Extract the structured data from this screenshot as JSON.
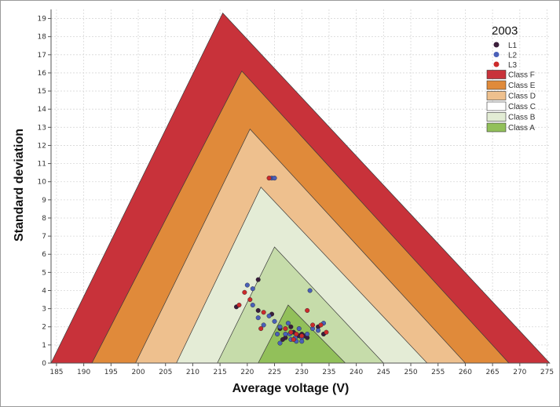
{
  "chart_data": {
    "type": "scatter",
    "title": "2003",
    "xlabel": "Average voltage (V)",
    "ylabel": "Standard deviation",
    "xlim": [
      184,
      275.5
    ],
    "ylim": [
      0,
      19.5
    ],
    "x_ticks": [
      185,
      190,
      195,
      200,
      205,
      210,
      215,
      220,
      225,
      230,
      235,
      240,
      245,
      250,
      255,
      260,
      265,
      270,
      275
    ],
    "y_ticks": [
      0,
      1,
      2,
      3,
      4,
      5,
      6,
      7,
      8,
      9,
      10,
      11,
      12,
      13,
      14,
      15,
      16,
      17,
      18,
      19
    ],
    "grid": true,
    "legend_position": "top-right",
    "colors": {
      "L1": "#3b1e3a",
      "L2": "#4a60b8",
      "L3": "#cc2a2a",
      "class_f": "#c8323a",
      "class_e": "#e08a3a",
      "class_d": "#eec08e",
      "class_c": "#ffffff",
      "class_b": "#e2ecd4",
      "class_a": "#92c05a"
    },
    "regions": [
      {
        "name": "Class F",
        "color": "#c8323a",
        "triangle": [
          [
            184,
            0
          ],
          [
            215.5,
            19.3
          ],
          [
            275.5,
            0
          ]
        ]
      },
      {
        "name": "Class E",
        "color": "#e08a3a",
        "triangle": [
          [
            191.5,
            0
          ],
          [
            219,
            16.1
          ],
          [
            268,
            0
          ]
        ]
      },
      {
        "name": "Class D",
        "color": "#eec08e",
        "triangle": [
          [
            199.5,
            0
          ],
          [
            220.5,
            12.9
          ],
          [
            260,
            0
          ]
        ]
      },
      {
        "name": "Class C",
        "color": "#e4ecd6",
        "triangle": [
          [
            207,
            0
          ],
          [
            222.5,
            9.7
          ],
          [
            253,
            0
          ]
        ]
      },
      {
        "name": "Class B",
        "color": "#c6dcaa",
        "triangle": [
          [
            214.5,
            0
          ],
          [
            225,
            6.4
          ],
          [
            245,
            0
          ]
        ]
      },
      {
        "name": "Class A",
        "color": "#92c05a",
        "triangle": [
          [
            222,
            0
          ],
          [
            227.5,
            3.2
          ],
          [
            238,
            0
          ]
        ]
      }
    ],
    "series": [
      {
        "name": "L1",
        "color": "#3b1e3a",
        "points": [
          [
            218,
            3.1
          ],
          [
            222,
            4.6
          ],
          [
            222,
            2.9
          ],
          [
            224.5,
            2.7
          ],
          [
            226,
            1.9
          ],
          [
            227,
            1.4
          ],
          [
            228.5,
            1.7
          ],
          [
            229.5,
            1.5
          ],
          [
            230,
            1.6
          ],
          [
            231,
            1.4
          ],
          [
            233,
            2.0
          ],
          [
            234,
            1.6
          ],
          [
            228,
            2.0
          ],
          [
            226.5,
            1.3
          ],
          [
            230.5,
            1.5
          ]
        ]
      },
      {
        "name": "L2",
        "color": "#4a60b8",
        "points": [
          [
            224.5,
            10.2
          ],
          [
            225,
            10.2
          ],
          [
            220,
            4.3
          ],
          [
            221,
            4.1
          ],
          [
            221,
            3.2
          ],
          [
            222,
            2.5
          ],
          [
            223,
            2.1
          ],
          [
            225,
            2.3
          ],
          [
            226,
            2.0
          ],
          [
            227,
            1.6
          ],
          [
            228,
            1.3
          ],
          [
            229,
            1.2
          ],
          [
            230,
            1.4
          ],
          [
            231,
            1.6
          ],
          [
            232,
            1.9
          ],
          [
            233,
            1.8
          ],
          [
            234,
            2.2
          ],
          [
            231.5,
            4.0
          ],
          [
            227.5,
            2.2
          ],
          [
            226,
            1.1
          ],
          [
            229.5,
            1.9
          ],
          [
            224,
            2.6
          ],
          [
            228.8,
            1.4
          ],
          [
            227.8,
            1.6
          ],
          [
            230,
            1.2
          ],
          [
            225.5,
            1.6
          ]
        ]
      },
      {
        "name": "L3",
        "color": "#cc2a2a",
        "points": [
          [
            224,
            10.2
          ],
          [
            219.5,
            3.9
          ],
          [
            220.5,
            3.5
          ],
          [
            222.5,
            1.9
          ],
          [
            223,
            2.8
          ],
          [
            227,
            1.9
          ],
          [
            228,
            1.7
          ],
          [
            229,
            1.6
          ],
          [
            230,
            1.5
          ],
          [
            231,
            2.9
          ],
          [
            232,
            2.1
          ],
          [
            233.5,
            2.1
          ],
          [
            234.5,
            1.7
          ],
          [
            218.5,
            3.2
          ],
          [
            228.5,
            1.3
          ]
        ]
      }
    ],
    "legend": [
      {
        "label": "L1",
        "kind": "marker",
        "color": "#3b1e3a"
      },
      {
        "label": "L2",
        "kind": "marker",
        "color": "#4a60b8"
      },
      {
        "label": "L3",
        "kind": "marker",
        "color": "#cc2a2a"
      },
      {
        "label": "Class F",
        "kind": "box",
        "color": "#c8323a"
      },
      {
        "label": "Class E",
        "kind": "box",
        "color": "#e08a3a"
      },
      {
        "label": "Class D",
        "kind": "box",
        "color": "#eec08e"
      },
      {
        "label": "Class C",
        "kind": "box",
        "color": "#ffffff"
      },
      {
        "label": "Class B",
        "kind": "box",
        "color": "#e2ecd4"
      },
      {
        "label": "Class A",
        "kind": "box",
        "color": "#92c05a"
      }
    ]
  }
}
